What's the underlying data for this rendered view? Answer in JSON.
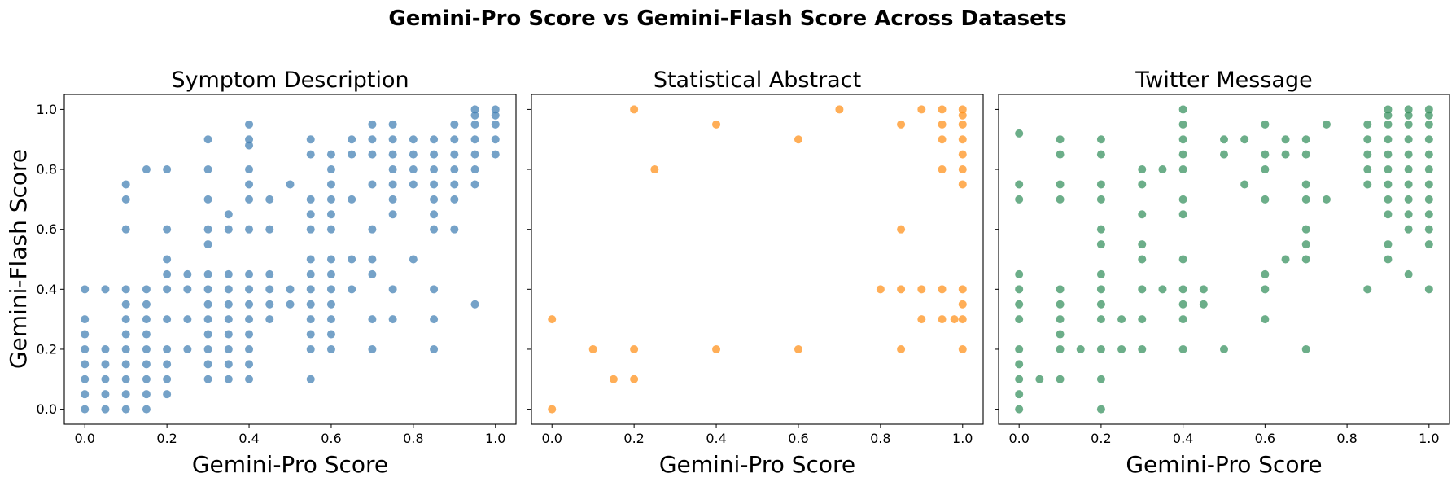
{
  "figure_title": "Gemini-Pro Score vs Gemini-Flash Score Across Datasets",
  "shared_ylabel": "Gemini-Flash Score",
  "chart_data": [
    {
      "type": "scatter",
      "title": "Symptom Description",
      "xlabel": "Gemini-Pro Score",
      "ylabel": "Gemini-Flash Score",
      "xlim": [
        -0.05,
        1.05
      ],
      "ylim": [
        -0.05,
        1.05
      ],
      "xticks": [
        "0.0",
        "0.2",
        "0.4",
        "0.6",
        "0.8",
        "1.0"
      ],
      "yticks": [
        "0.0",
        "0.2",
        "0.4",
        "0.6",
        "0.8",
        "1.0"
      ],
      "color": "#3b7bb0",
      "grid": false,
      "points": [
        [
          0,
          0.4
        ],
        [
          0,
          0.3
        ],
        [
          0,
          0.25
        ],
        [
          0,
          0.2
        ],
        [
          0,
          0.15
        ],
        [
          0,
          0.1
        ],
        [
          0,
          0.05
        ],
        [
          0,
          0
        ],
        [
          0.05,
          0.4
        ],
        [
          0.05,
          0.2
        ],
        [
          0.05,
          0.15
        ],
        [
          0.05,
          0.1
        ],
        [
          0.05,
          0.05
        ],
        [
          0.05,
          0
        ],
        [
          0.1,
          0.75
        ],
        [
          0.1,
          0.7
        ],
        [
          0.1,
          0.6
        ],
        [
          0.1,
          0.4
        ],
        [
          0.1,
          0.35
        ],
        [
          0.1,
          0.3
        ],
        [
          0.1,
          0.25
        ],
        [
          0.1,
          0.2
        ],
        [
          0.1,
          0.15
        ],
        [
          0.1,
          0.1
        ],
        [
          0.1,
          0.05
        ],
        [
          0.1,
          0
        ],
        [
          0.15,
          0.8
        ],
        [
          0.15,
          0.4
        ],
        [
          0.15,
          0.35
        ],
        [
          0.15,
          0.3
        ],
        [
          0.15,
          0.25
        ],
        [
          0.15,
          0.2
        ],
        [
          0.15,
          0.15
        ],
        [
          0.15,
          0.1
        ],
        [
          0.15,
          0.05
        ],
        [
          0.15,
          0
        ],
        [
          0.2,
          0.8
        ],
        [
          0.2,
          0.6
        ],
        [
          0.2,
          0.5
        ],
        [
          0.2,
          0.45
        ],
        [
          0.2,
          0.4
        ],
        [
          0.2,
          0.3
        ],
        [
          0.2,
          0.2
        ],
        [
          0.2,
          0.15
        ],
        [
          0.2,
          0.1
        ],
        [
          0.2,
          0.05
        ],
        [
          0.25,
          0.45
        ],
        [
          0.25,
          0.4
        ],
        [
          0.25,
          0.3
        ],
        [
          0.25,
          0.2
        ],
        [
          0.3,
          0.9
        ],
        [
          0.3,
          0.8
        ],
        [
          0.3,
          0.7
        ],
        [
          0.3,
          0.6
        ],
        [
          0.3,
          0.55
        ],
        [
          0.3,
          0.45
        ],
        [
          0.3,
          0.4
        ],
        [
          0.3,
          0.35
        ],
        [
          0.3,
          0.3
        ],
        [
          0.3,
          0.25
        ],
        [
          0.3,
          0.2
        ],
        [
          0.3,
          0.15
        ],
        [
          0.3,
          0.1
        ],
        [
          0.35,
          0.65
        ],
        [
          0.35,
          0.6
        ],
        [
          0.35,
          0.45
        ],
        [
          0.35,
          0.4
        ],
        [
          0.35,
          0.35
        ],
        [
          0.35,
          0.3
        ],
        [
          0.35,
          0.25
        ],
        [
          0.35,
          0.2
        ],
        [
          0.35,
          0.15
        ],
        [
          0.35,
          0.1
        ],
        [
          0.4,
          0.95
        ],
        [
          0.4,
          0.9
        ],
        [
          0.4,
          0.88
        ],
        [
          0.4,
          0.8
        ],
        [
          0.4,
          0.75
        ],
        [
          0.4,
          0.7
        ],
        [
          0.4,
          0.6
        ],
        [
          0.4,
          0.45
        ],
        [
          0.4,
          0.4
        ],
        [
          0.4,
          0.35
        ],
        [
          0.4,
          0.3
        ],
        [
          0.4,
          0.25
        ],
        [
          0.4,
          0.2
        ],
        [
          0.4,
          0.15
        ],
        [
          0.4,
          0.1
        ],
        [
          0.45,
          0.7
        ],
        [
          0.45,
          0.6
        ],
        [
          0.45,
          0.45
        ],
        [
          0.45,
          0.4
        ],
        [
          0.45,
          0.35
        ],
        [
          0.45,
          0.3
        ],
        [
          0.5,
          0.75
        ],
        [
          0.5,
          0.4
        ],
        [
          0.5,
          0.35
        ],
        [
          0.55,
          0.9
        ],
        [
          0.55,
          0.85
        ],
        [
          0.55,
          0.7
        ],
        [
          0.55,
          0.65
        ],
        [
          0.55,
          0.6
        ],
        [
          0.55,
          0.5
        ],
        [
          0.55,
          0.45
        ],
        [
          0.55,
          0.4
        ],
        [
          0.55,
          0.35
        ],
        [
          0.55,
          0.3
        ],
        [
          0.55,
          0.25
        ],
        [
          0.55,
          0.2
        ],
        [
          0.55,
          0.1
        ],
        [
          0.6,
          0.85
        ],
        [
          0.6,
          0.8
        ],
        [
          0.6,
          0.75
        ],
        [
          0.6,
          0.7
        ],
        [
          0.6,
          0.65
        ],
        [
          0.6,
          0.6
        ],
        [
          0.6,
          0.5
        ],
        [
          0.6,
          0.45
        ],
        [
          0.6,
          0.4
        ],
        [
          0.6,
          0.35
        ],
        [
          0.6,
          0.3
        ],
        [
          0.6,
          0.25
        ],
        [
          0.6,
          0.2
        ],
        [
          0.65,
          0.9
        ],
        [
          0.65,
          0.85
        ],
        [
          0.65,
          0.7
        ],
        [
          0.65,
          0.5
        ],
        [
          0.65,
          0.4
        ],
        [
          0.7,
          0.95
        ],
        [
          0.7,
          0.9
        ],
        [
          0.7,
          0.85
        ],
        [
          0.7,
          0.75
        ],
        [
          0.7,
          0.6
        ],
        [
          0.7,
          0.5
        ],
        [
          0.7,
          0.45
        ],
        [
          0.7,
          0.3
        ],
        [
          0.7,
          0.2
        ],
        [
          0.75,
          0.95
        ],
        [
          0.75,
          0.9
        ],
        [
          0.75,
          0.85
        ],
        [
          0.75,
          0.8
        ],
        [
          0.75,
          0.75
        ],
        [
          0.75,
          0.7
        ],
        [
          0.75,
          0.65
        ],
        [
          0.75,
          0.4
        ],
        [
          0.75,
          0.3
        ],
        [
          0.8,
          0.9
        ],
        [
          0.8,
          0.85
        ],
        [
          0.8,
          0.8
        ],
        [
          0.8,
          0.75
        ],
        [
          0.8,
          0.5
        ],
        [
          0.85,
          0.9
        ],
        [
          0.85,
          0.85
        ],
        [
          0.85,
          0.8
        ],
        [
          0.85,
          0.75
        ],
        [
          0.85,
          0.7
        ],
        [
          0.85,
          0.65
        ],
        [
          0.85,
          0.6
        ],
        [
          0.85,
          0.4
        ],
        [
          0.85,
          0.3
        ],
        [
          0.85,
          0.2
        ],
        [
          0.9,
          0.95
        ],
        [
          0.9,
          0.9
        ],
        [
          0.9,
          0.85
        ],
        [
          0.9,
          0.8
        ],
        [
          0.9,
          0.75
        ],
        [
          0.9,
          0.7
        ],
        [
          0.9,
          0.6
        ],
        [
          0.95,
          1
        ],
        [
          0.95,
          0.98
        ],
        [
          0.95,
          0.95
        ],
        [
          0.95,
          0.9
        ],
        [
          0.95,
          0.85
        ],
        [
          0.95,
          0.8
        ],
        [
          0.95,
          0.75
        ],
        [
          0.95,
          0.35
        ],
        [
          1,
          1
        ],
        [
          1,
          0.98
        ],
        [
          1,
          0.95
        ],
        [
          1,
          0.9
        ],
        [
          1,
          0.85
        ]
      ]
    },
    {
      "type": "scatter",
      "title": "Statistical Abstract",
      "xlabel": "Gemini-Pro Score",
      "ylabel": "",
      "xlim": [
        -0.05,
        1.05
      ],
      "ylim": [
        -0.05,
        1.05
      ],
      "xticks": [
        "0.0",
        "0.2",
        "0.4",
        "0.6",
        "0.8",
        "1.0"
      ],
      "yticks": [],
      "color": "#ff8c0f",
      "grid": false,
      "points": [
        [
          0,
          0
        ],
        [
          0,
          0.3
        ],
        [
          0.1,
          0.2
        ],
        [
          0.15,
          0.1
        ],
        [
          0.2,
          1
        ],
        [
          0.2,
          0.2
        ],
        [
          0.2,
          0.1
        ],
        [
          0.25,
          0.8
        ],
        [
          0.4,
          0.95
        ],
        [
          0.4,
          0.2
        ],
        [
          0.6,
          0.9
        ],
        [
          0.6,
          0.2
        ],
        [
          0.7,
          1
        ],
        [
          0.8,
          0.4
        ],
        [
          0.85,
          0.95
        ],
        [
          0.85,
          0.6
        ],
        [
          0.85,
          0.4
        ],
        [
          0.85,
          0.2
        ],
        [
          0.9,
          1
        ],
        [
          0.9,
          0.4
        ],
        [
          0.9,
          0.3
        ],
        [
          0.95,
          1
        ],
        [
          0.95,
          0.95
        ],
        [
          0.95,
          0.9
        ],
        [
          0.95,
          0.8
        ],
        [
          0.95,
          0.4
        ],
        [
          0.95,
          0.3
        ],
        [
          0.98,
          0.3
        ],
        [
          1,
          1
        ],
        [
          1,
          0.98
        ],
        [
          1,
          0.95
        ],
        [
          1,
          0.9
        ],
        [
          1,
          0.85
        ],
        [
          1,
          0.8
        ],
        [
          1,
          0.75
        ],
        [
          1,
          0.4
        ],
        [
          1,
          0.35
        ],
        [
          1,
          0.3
        ],
        [
          1,
          0.2
        ]
      ]
    },
    {
      "type": "scatter",
      "title": "Twitter Message",
      "xlabel": "Gemini-Pro Score",
      "ylabel": "",
      "xlim": [
        -0.05,
        1.05
      ],
      "ylim": [
        -0.05,
        1.05
      ],
      "xticks": [
        "0.0",
        "0.2",
        "0.4",
        "0.6",
        "0.8",
        "1.0"
      ],
      "yticks": [],
      "color": "#2e8b57",
      "grid": false,
      "points": [
        [
          0,
          0.92
        ],
        [
          0,
          0.75
        ],
        [
          0,
          0.7
        ],
        [
          0,
          0.45
        ],
        [
          0,
          0.4
        ],
        [
          0,
          0.35
        ],
        [
          0,
          0.3
        ],
        [
          0,
          0.2
        ],
        [
          0,
          0.15
        ],
        [
          0,
          0.1
        ],
        [
          0,
          0.05
        ],
        [
          0,
          0
        ],
        [
          0.05,
          0.1
        ],
        [
          0.1,
          0.9
        ],
        [
          0.1,
          0.85
        ],
        [
          0.1,
          0.75
        ],
        [
          0.1,
          0.7
        ],
        [
          0.1,
          0.4
        ],
        [
          0.1,
          0.35
        ],
        [
          0.1,
          0.3
        ],
        [
          0.1,
          0.25
        ],
        [
          0.1,
          0.2
        ],
        [
          0.1,
          0.1
        ],
        [
          0.15,
          0.2
        ],
        [
          0.2,
          0.9
        ],
        [
          0.2,
          0.85
        ],
        [
          0.2,
          0.75
        ],
        [
          0.2,
          0.7
        ],
        [
          0.2,
          0.6
        ],
        [
          0.2,
          0.55
        ],
        [
          0.2,
          0.45
        ],
        [
          0.2,
          0.4
        ],
        [
          0.2,
          0.35
        ],
        [
          0.2,
          0.3
        ],
        [
          0.2,
          0.2
        ],
        [
          0.2,
          0.1
        ],
        [
          0.2,
          0
        ],
        [
          0.25,
          0.3
        ],
        [
          0.25,
          0.2
        ],
        [
          0.3,
          0.8
        ],
        [
          0.3,
          0.75
        ],
        [
          0.3,
          0.65
        ],
        [
          0.3,
          0.55
        ],
        [
          0.3,
          0.5
        ],
        [
          0.3,
          0.4
        ],
        [
          0.3,
          0.3
        ],
        [
          0.3,
          0.2
        ],
        [
          0.35,
          0.8
        ],
        [
          0.35,
          0.4
        ],
        [
          0.4,
          1
        ],
        [
          0.4,
          0.95
        ],
        [
          0.4,
          0.9
        ],
        [
          0.4,
          0.85
        ],
        [
          0.4,
          0.8
        ],
        [
          0.4,
          0.7
        ],
        [
          0.4,
          0.65
        ],
        [
          0.4,
          0.5
        ],
        [
          0.4,
          0.4
        ],
        [
          0.4,
          0.35
        ],
        [
          0.4,
          0.3
        ],
        [
          0.4,
          0.2
        ],
        [
          0.45,
          0.4
        ],
        [
          0.45,
          0.35
        ],
        [
          0.5,
          0.9
        ],
        [
          0.5,
          0.85
        ],
        [
          0.5,
          0.2
        ],
        [
          0.55,
          0.9
        ],
        [
          0.55,
          0.75
        ],
        [
          0.6,
          0.95
        ],
        [
          0.6,
          0.85
        ],
        [
          0.6,
          0.8
        ],
        [
          0.6,
          0.7
        ],
        [
          0.6,
          0.45
        ],
        [
          0.6,
          0.4
        ],
        [
          0.6,
          0.3
        ],
        [
          0.65,
          0.9
        ],
        [
          0.65,
          0.85
        ],
        [
          0.65,
          0.5
        ],
        [
          0.7,
          0.9
        ],
        [
          0.7,
          0.85
        ],
        [
          0.7,
          0.75
        ],
        [
          0.7,
          0.7
        ],
        [
          0.7,
          0.6
        ],
        [
          0.7,
          0.55
        ],
        [
          0.7,
          0.5
        ],
        [
          0.7,
          0.2
        ],
        [
          0.75,
          0.95
        ],
        [
          0.75,
          0.7
        ],
        [
          0.85,
          0.95
        ],
        [
          0.85,
          0.9
        ],
        [
          0.85,
          0.85
        ],
        [
          0.85,
          0.8
        ],
        [
          0.85,
          0.75
        ],
        [
          0.85,
          0.4
        ],
        [
          0.9,
          1
        ],
        [
          0.9,
          0.98
        ],
        [
          0.9,
          0.95
        ],
        [
          0.9,
          0.9
        ],
        [
          0.9,
          0.85
        ],
        [
          0.9,
          0.8
        ],
        [
          0.9,
          0.75
        ],
        [
          0.9,
          0.7
        ],
        [
          0.9,
          0.65
        ],
        [
          0.9,
          0.55
        ],
        [
          0.9,
          0.5
        ],
        [
          0.95,
          1
        ],
        [
          0.95,
          0.98
        ],
        [
          0.95,
          0.95
        ],
        [
          0.95,
          0.9
        ],
        [
          0.95,
          0.85
        ],
        [
          0.95,
          0.8
        ],
        [
          0.95,
          0.75
        ],
        [
          0.95,
          0.7
        ],
        [
          0.95,
          0.65
        ],
        [
          0.95,
          0.6
        ],
        [
          0.95,
          0.45
        ],
        [
          1,
          1
        ],
        [
          1,
          0.98
        ],
        [
          1,
          0.95
        ],
        [
          1,
          0.9
        ],
        [
          1,
          0.85
        ],
        [
          1,
          0.8
        ],
        [
          1,
          0.75
        ],
        [
          1,
          0.7
        ],
        [
          1,
          0.65
        ],
        [
          1,
          0.6
        ],
        [
          1,
          0.55
        ],
        [
          1,
          0.4
        ]
      ]
    }
  ]
}
